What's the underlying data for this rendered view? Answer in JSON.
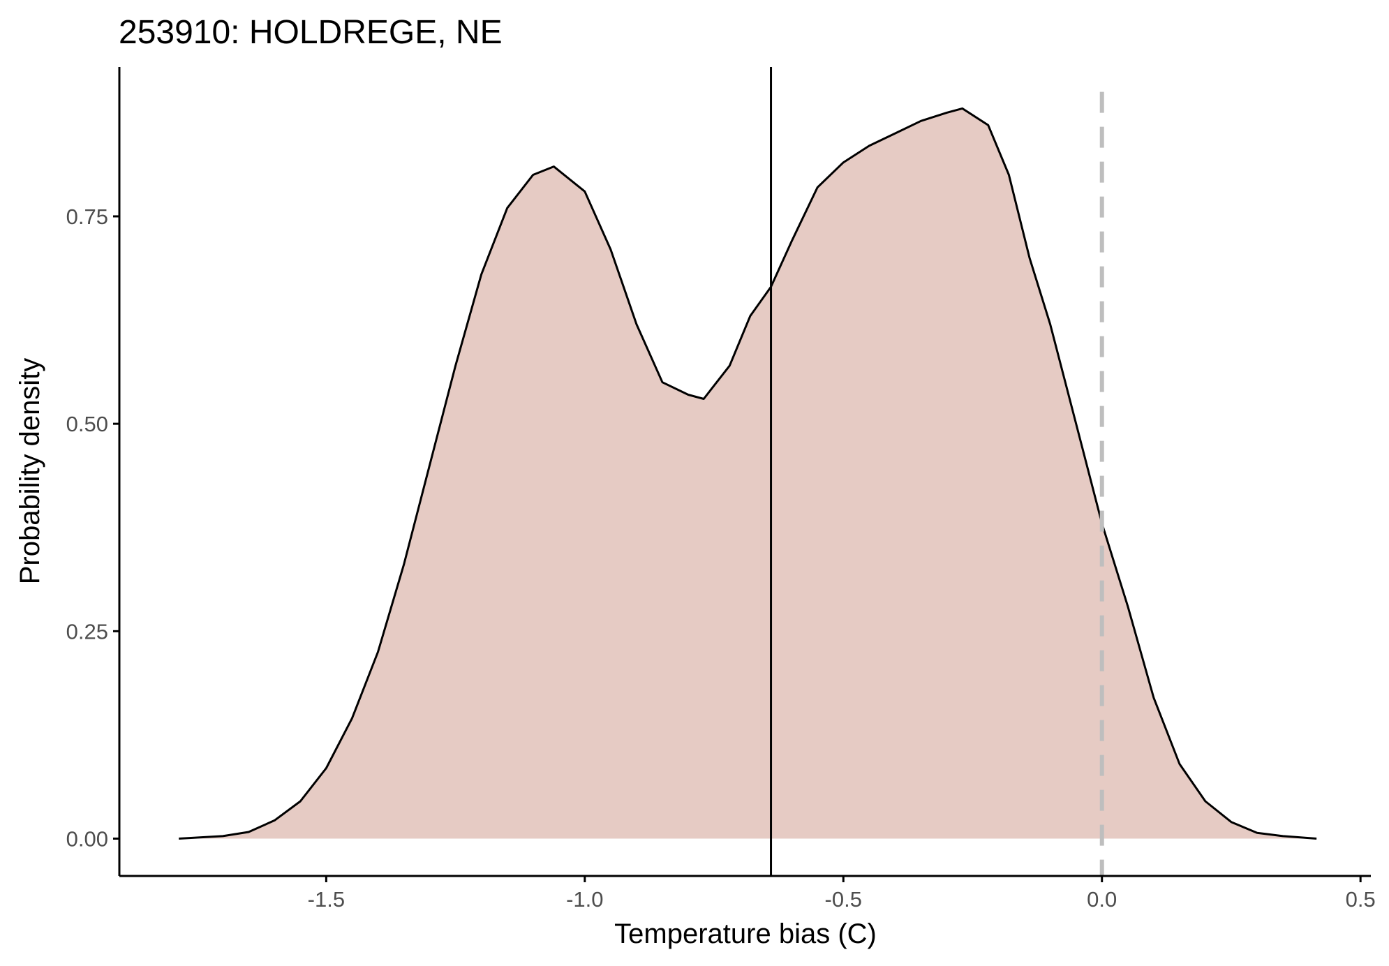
{
  "chart_data": {
    "type": "area",
    "title": "253910: HOLDREGE, NE",
    "xlabel": "Temperature bias (C)",
    "ylabel": "Probability density",
    "xlim": [
      -1.9,
      0.52
    ],
    "ylim": [
      -0.045,
      0.93
    ],
    "x_ticks": [
      {
        "value": -1.5,
        "label": "-1.5"
      },
      {
        "value": -1.0,
        "label": "-1.0"
      },
      {
        "value": -0.5,
        "label": "-0.5"
      },
      {
        "value": 0.0,
        "label": "0.0"
      },
      {
        "value": 0.5,
        "label": "0.5"
      }
    ],
    "y_ticks": [
      {
        "value": 0.0,
        "label": "0.00"
      },
      {
        "value": 0.25,
        "label": "0.25"
      },
      {
        "value": 0.5,
        "label": "0.50"
      },
      {
        "value": 0.75,
        "label": "0.75"
      }
    ],
    "series": [
      {
        "x": [
          -1.785,
          -1.7,
          -1.65,
          -1.6,
          -1.55,
          -1.5,
          -1.45,
          -1.4,
          -1.35,
          -1.3,
          -1.25,
          -1.2,
          -1.15,
          -1.1,
          -1.06,
          -1.0,
          -0.95,
          -0.9,
          -0.85,
          -0.8,
          -0.77,
          -0.72,
          -0.68,
          -0.64,
          -0.6,
          -0.55,
          -0.5,
          -0.45,
          -0.4,
          -0.35,
          -0.3,
          -0.27,
          -0.22,
          -0.18,
          -0.14,
          -0.1,
          -0.05,
          0.0,
          0.05,
          0.1,
          0.15,
          0.2,
          0.25,
          0.3,
          0.35,
          0.415
        ],
        "y": [
          0.0,
          0.003,
          0.008,
          0.022,
          0.045,
          0.085,
          0.145,
          0.225,
          0.33,
          0.45,
          0.57,
          0.68,
          0.76,
          0.8,
          0.81,
          0.78,
          0.71,
          0.62,
          0.55,
          0.535,
          0.53,
          0.57,
          0.63,
          0.665,
          0.72,
          0.785,
          0.815,
          0.835,
          0.85,
          0.865,
          0.875,
          0.88,
          0.86,
          0.8,
          0.7,
          0.62,
          0.5,
          0.38,
          0.28,
          0.17,
          0.09,
          0.045,
          0.02,
          0.007,
          0.003,
          0.0
        ]
      }
    ],
    "vlines": [
      {
        "x": -0.64,
        "style": "solid"
      },
      {
        "x": 0.0,
        "style": "dashed"
      }
    ],
    "colors": {
      "fill": "#e6cbc4",
      "line": "#000000",
      "reference_line": "#bebebe",
      "axis": "#000000",
      "tick_text": "#4d4d4d"
    },
    "grid": false,
    "legend": "none"
  }
}
